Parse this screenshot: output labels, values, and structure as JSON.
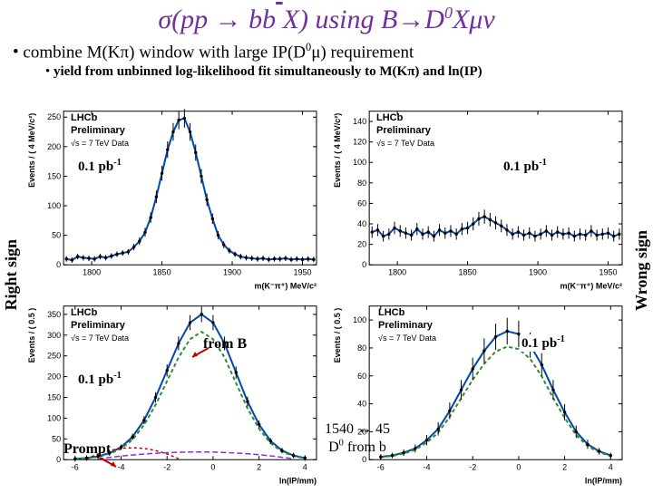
{
  "title_parts": {
    "a": "σ(pp → bb",
    "b": "X) using B→D",
    "c": "Xμν"
  },
  "bullet1_a": "combine M(Kπ) window with large IP(D",
  "bullet1_b": "μ) requirement",
  "bullet2": "yield from unbinned log-likelihood fit simultaneously to M(Kπ) and ln(IP)",
  "left_label": "Right sign",
  "right_label": "Wrong sign",
  "lhcb": {
    "l1": "LHCb",
    "l2": "Preliminary",
    "l3": "√s = 7 TeV Data"
  },
  "lumi": "0.1 pb",
  "lumi_exp": "-1",
  "from_b": "from B",
  "prompt": "Prompt",
  "yield_line1a": "1540  ↔ 45",
  "yield_line2a": "D",
  "yield_line2b": " from b",
  "panel_tl": {
    "ylabel": "Events / ( 4 MeV/c²)",
    "xlabel": "m(K⁻π⁺)  MeV/c²",
    "yticks": [
      {
        "v": 0,
        "l": "0"
      },
      {
        "v": 50,
        "l": "50"
      },
      {
        "v": 100,
        "l": "100"
      },
      {
        "v": 150,
        "l": "150"
      },
      {
        "v": 200,
        "l": "200"
      },
      {
        "v": 250,
        "l": "250"
      }
    ],
    "xticks": [
      {
        "v": 1800,
        "l": "1800"
      },
      {
        "v": 1850,
        "l": "1850"
      },
      {
        "v": 1900,
        "l": "1900"
      },
      {
        "v": 1950,
        "l": "1950"
      }
    ],
    "ylim": [
      0,
      260
    ],
    "xlim": [
      1780,
      1960
    ],
    "data": [
      [
        1782,
        10
      ],
      [
        1786,
        8
      ],
      [
        1790,
        14
      ],
      [
        1794,
        12
      ],
      [
        1798,
        11
      ],
      [
        1802,
        10
      ],
      [
        1806,
        14
      ],
      [
        1810,
        12
      ],
      [
        1814,
        15
      ],
      [
        1818,
        18
      ],
      [
        1822,
        20
      ],
      [
        1826,
        22
      ],
      [
        1830,
        30
      ],
      [
        1834,
        40
      ],
      [
        1838,
        55
      ],
      [
        1842,
        80
      ],
      [
        1846,
        115
      ],
      [
        1850,
        155
      ],
      [
        1854,
        195
      ],
      [
        1858,
        225
      ],
      [
        1862,
        245
      ],
      [
        1866,
        248
      ],
      [
        1870,
        225
      ],
      [
        1874,
        190
      ],
      [
        1878,
        150
      ],
      [
        1882,
        110
      ],
      [
        1886,
        78
      ],
      [
        1890,
        50
      ],
      [
        1894,
        34
      ],
      [
        1898,
        24
      ],
      [
        1902,
        18
      ],
      [
        1906,
        14
      ],
      [
        1910,
        12
      ],
      [
        1914,
        11
      ],
      [
        1918,
        10
      ],
      [
        1922,
        11
      ],
      [
        1926,
        9
      ],
      [
        1930,
        10
      ],
      [
        1934,
        10
      ],
      [
        1938,
        11
      ],
      [
        1942,
        9
      ],
      [
        1946,
        10
      ],
      [
        1950,
        9
      ],
      [
        1954,
        10
      ],
      [
        1958,
        9
      ]
    ],
    "colors": {
      "fit": "#0047ab"
    }
  },
  "panel_tr": {
    "ylabel": "Events / ( 4 MeV/c²)",
    "xlabel": "m(K⁻π⁺)  MeV/c²",
    "yticks": [
      {
        "v": 0,
        "l": "0"
      },
      {
        "v": 20,
        "l": "20"
      },
      {
        "v": 40,
        "l": "40"
      },
      {
        "v": 60,
        "l": "60"
      },
      {
        "v": 80,
        "l": "80"
      },
      {
        "v": 100,
        "l": "100"
      },
      {
        "v": 120,
        "l": "120"
      },
      {
        "v": 140,
        "l": "140"
      }
    ],
    "xticks": [
      {
        "v": 1800,
        "l": "1800"
      },
      {
        "v": 1850,
        "l": "1850"
      },
      {
        "v": 1900,
        "l": "1900"
      },
      {
        "v": 1950,
        "l": "1950"
      }
    ],
    "ylim": [
      0,
      150
    ],
    "xlim": [
      1780,
      1960
    ],
    "data": [
      [
        1782,
        32
      ],
      [
        1786,
        34
      ],
      [
        1790,
        28
      ],
      [
        1794,
        30
      ],
      [
        1798,
        36
      ],
      [
        1802,
        33
      ],
      [
        1806,
        31
      ],
      [
        1810,
        29
      ],
      [
        1814,
        35
      ],
      [
        1818,
        30
      ],
      [
        1822,
        32
      ],
      [
        1826,
        28
      ],
      [
        1830,
        34
      ],
      [
        1834,
        31
      ],
      [
        1838,
        33
      ],
      [
        1842,
        30
      ],
      [
        1846,
        35
      ],
      [
        1850,
        36
      ],
      [
        1854,
        40
      ],
      [
        1858,
        45
      ],
      [
        1862,
        47
      ],
      [
        1866,
        44
      ],
      [
        1870,
        41
      ],
      [
        1874,
        38
      ],
      [
        1878,
        34
      ],
      [
        1882,
        30
      ],
      [
        1886,
        32
      ],
      [
        1890,
        29
      ],
      [
        1894,
        31
      ],
      [
        1898,
        28
      ],
      [
        1902,
        30
      ],
      [
        1906,
        33
      ],
      [
        1910,
        29
      ],
      [
        1914,
        32
      ],
      [
        1918,
        30
      ],
      [
        1922,
        31
      ],
      [
        1926,
        28
      ],
      [
        1930,
        30
      ],
      [
        1934,
        29
      ],
      [
        1938,
        33
      ],
      [
        1942,
        29
      ],
      [
        1946,
        30
      ],
      [
        1950,
        31
      ],
      [
        1954,
        28
      ],
      [
        1958,
        30
      ]
    ],
    "colors": {
      "fit": "#0047ab"
    }
  },
  "panel_bl": {
    "ylabel": "Events / ( 0.5 )",
    "xlabel": "ln(IP/mm)",
    "yticks": [
      {
        "v": 0,
        "l": "0"
      },
      {
        "v": 50,
        "l": "50"
      },
      {
        "v": 100,
        "l": "100"
      },
      {
        "v": 150,
        "l": "150"
      },
      {
        "v": 200,
        "l": "200"
      },
      {
        "v": 250,
        "l": "250"
      },
      {
        "v": 300,
        "l": "300"
      },
      {
        "v": 350,
        "l": "350"
      }
    ],
    "xticks": [
      {
        "v": -6,
        "l": "-6"
      },
      {
        "v": -4,
        "l": "-4"
      },
      {
        "v": -2,
        "l": "-2"
      },
      {
        "v": 0,
        "l": "0"
      },
      {
        "v": 2,
        "l": "2"
      },
      {
        "v": 4,
        "l": "4"
      }
    ],
    "ylim": [
      0,
      370
    ],
    "xlim": [
      -6.5,
      4.5
    ],
    "data": [
      [
        -6,
        2
      ],
      [
        -5.5,
        4
      ],
      [
        -5,
        8
      ],
      [
        -4.5,
        16
      ],
      [
        -4,
        30
      ],
      [
        -3.5,
        55
      ],
      [
        -3,
        95
      ],
      [
        -2.5,
        150
      ],
      [
        -2,
        215
      ],
      [
        -1.5,
        280
      ],
      [
        -1,
        330
      ],
      [
        -0.5,
        350
      ],
      [
        0,
        330
      ],
      [
        0.5,
        280
      ],
      [
        1,
        210
      ],
      [
        1.5,
        140
      ],
      [
        2,
        85
      ],
      [
        2.5,
        45
      ],
      [
        3,
        22
      ],
      [
        3.5,
        10
      ],
      [
        4,
        4
      ]
    ],
    "colors": {
      "total": "#0047ab",
      "fromb": "#2e8b2e",
      "prompt": "#c00000",
      "bkg": "#8a2be2"
    }
  },
  "panel_br": {
    "ylabel": "Events / ( 0.5 )",
    "xlabel": "ln(IP/mm)",
    "yticks": [
      {
        "v": 0,
        "l": "0"
      },
      {
        "v": 20,
        "l": "20"
      },
      {
        "v": 40,
        "l": "40"
      },
      {
        "v": 60,
        "l": "60"
      },
      {
        "v": 80,
        "l": "80"
      },
      {
        "v": 100,
        "l": "100"
      }
    ],
    "xticks": [
      {
        "v": -6,
        "l": "-6"
      },
      {
        "v": -4,
        "l": "-4"
      },
      {
        "v": -2,
        "l": "-2"
      },
      {
        "v": 0,
        "l": "0"
      },
      {
        "v": 2,
        "l": "2"
      },
      {
        "v": 4,
        "l": "4"
      }
    ],
    "ylim": [
      0,
      110
    ],
    "xlim": [
      -6.5,
      4.5
    ],
    "data": [
      [
        -6,
        2
      ],
      [
        -5.5,
        3
      ],
      [
        -5,
        5
      ],
      [
        -4.5,
        8
      ],
      [
        -4,
        14
      ],
      [
        -3.5,
        22
      ],
      [
        -3,
        35
      ],
      [
        -2.5,
        50
      ],
      [
        -2,
        65
      ],
      [
        -1.5,
        78
      ],
      [
        -1,
        88
      ],
      [
        -0.5,
        92
      ],
      [
        0,
        90
      ],
      [
        0.5,
        82
      ],
      [
        1,
        68
      ],
      [
        1.5,
        50
      ],
      [
        2,
        34
      ],
      [
        2.5,
        20
      ],
      [
        3,
        11
      ],
      [
        3.5,
        6
      ],
      [
        4,
        3
      ]
    ],
    "colors": {
      "total": "#0047ab",
      "fromb": "#2e8b2e"
    }
  }
}
